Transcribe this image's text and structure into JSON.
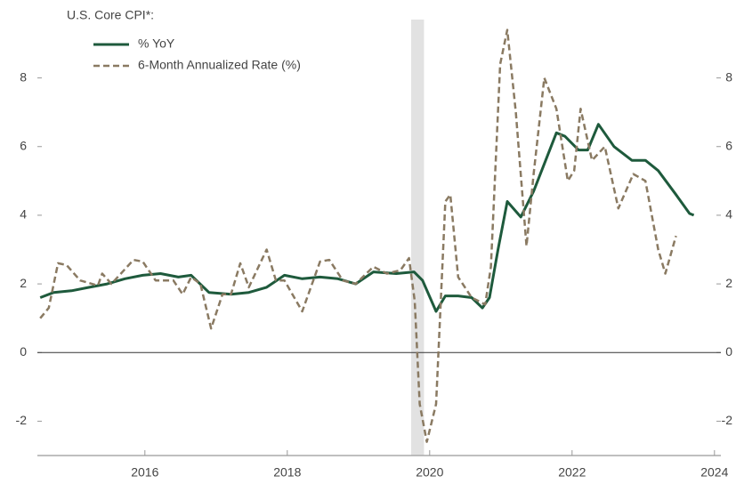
{
  "chart_data": {
    "type": "line",
    "title": "U.S. Core CPI*:",
    "xlim": [
      2014.49,
      2024.09
    ],
    "xticks": [
      2016,
      2018,
      2020,
      2022,
      2024
    ],
    "ylim": [
      -3.0,
      9.7
    ],
    "yticks": [
      -2,
      0,
      2,
      4,
      6,
      8
    ],
    "shaded_regions": [
      [
        2019.74,
        2019.92
      ]
    ],
    "legend": "top-left",
    "series": [
      {
        "name": "% YoY",
        "color": "#1e5a3c",
        "style": "solid",
        "x": [
          2014.53,
          2014.72,
          2014.97,
          2015.22,
          2015.47,
          2015.72,
          2015.97,
          2016.22,
          2016.47,
          2016.65,
          2016.9,
          2017.21,
          2017.46,
          2017.71,
          2017.96,
          2018.21,
          2018.46,
          2018.71,
          2018.96,
          2019.21,
          2019.53,
          2019.78,
          2019.9,
          2020.09,
          2020.22,
          2020.4,
          2020.59,
          2020.74,
          2020.84,
          2020.96,
          2021.09,
          2021.28,
          2021.46,
          2021.78,
          2021.9,
          2022.09,
          2022.22,
          2022.37,
          2022.59,
          2022.84,
          2023.03,
          2023.21,
          2023.46,
          2023.65,
          2023.71
        ],
        "values": [
          1.6,
          1.75,
          1.8,
          1.9,
          2.0,
          2.15,
          2.25,
          2.3,
          2.2,
          2.25,
          1.75,
          1.7,
          1.75,
          1.9,
          2.25,
          2.15,
          2.2,
          2.15,
          2.0,
          2.35,
          2.3,
          2.35,
          2.1,
          1.2,
          1.65,
          1.65,
          1.6,
          1.3,
          1.6,
          3.0,
          4.4,
          3.95,
          4.7,
          6.4,
          6.3,
          5.9,
          5.9,
          6.65,
          6.0,
          5.6,
          5.6,
          5.3,
          4.6,
          4.05,
          4.0
        ]
      },
      {
        "name": "6-Month Annualized Rate (%)",
        "color": "#8a7a62",
        "style": "dashed",
        "x": [
          2014.53,
          2014.65,
          2014.78,
          2014.9,
          2015.09,
          2015.34,
          2015.4,
          2015.53,
          2015.84,
          2015.97,
          2016.15,
          2016.4,
          2016.53,
          2016.65,
          2016.78,
          2016.93,
          2017.09,
          2017.21,
          2017.34,
          2017.46,
          2017.71,
          2017.84,
          2017.96,
          2018.21,
          2018.46,
          2018.59,
          2018.78,
          2018.96,
          2019.21,
          2019.4,
          2019.59,
          2019.71,
          2019.79,
          2019.86,
          2019.96,
          2020.09,
          2020.22,
          2020.29,
          2020.4,
          2020.59,
          2020.78,
          2020.86,
          2020.99,
          2021.09,
          2021.21,
          2021.36,
          2021.46,
          2021.61,
          2021.78,
          2021.94,
          2022.03,
          2022.12,
          2022.28,
          2022.46,
          2022.65,
          2022.86,
          2023.03,
          2023.21,
          2023.31,
          2023.46
        ],
        "values": [
          1.0,
          1.3,
          2.6,
          2.55,
          2.1,
          1.95,
          2.3,
          2.0,
          2.7,
          2.65,
          2.1,
          2.1,
          1.7,
          2.2,
          2.0,
          0.7,
          1.7,
          1.7,
          2.6,
          1.9,
          3.0,
          2.1,
          2.1,
          1.2,
          2.65,
          2.7,
          2.1,
          2.0,
          2.5,
          2.3,
          2.4,
          2.75,
          1.5,
          -1.5,
          -2.6,
          -1.5,
          4.4,
          4.6,
          2.2,
          1.6,
          1.4,
          2.5,
          8.4,
          9.4,
          7.0,
          3.1,
          5.2,
          8.0,
          7.1,
          5.0,
          5.3,
          7.1,
          5.6,
          6.0,
          4.2,
          5.2,
          5.0,
          3.0,
          2.3,
          3.4
        ]
      }
    ]
  }
}
